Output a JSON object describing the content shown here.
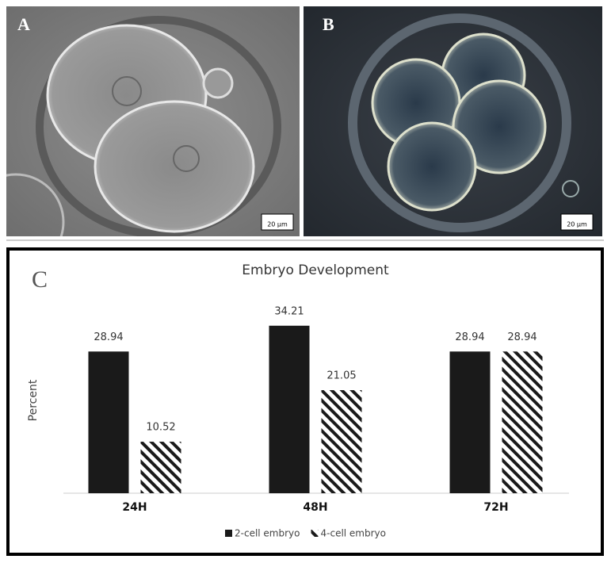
{
  "panels": [
    {
      "label": "A",
      "scale_bar": "20 µm"
    },
    {
      "label": "B",
      "scale_bar": "20 µm"
    }
  ],
  "chart_data": {
    "type": "bar",
    "panel_label": "C",
    "title": "Embryo Development",
    "y_label": "Percent",
    "categories": [
      "24H",
      "48H",
      "72H"
    ],
    "series": [
      {
        "name": "2-cell embryo",
        "color": "#1a1a1a",
        "pattern": "solid",
        "values": [
          28.94,
          34.21,
          28.94
        ]
      },
      {
        "name": "4-cell embryo",
        "color": "#1a1a1a",
        "pattern": "hatch",
        "values": [
          10.52,
          21.05,
          28.94
        ]
      }
    ],
    "ylim": [
      0,
      40
    ],
    "legend": "bottom"
  }
}
